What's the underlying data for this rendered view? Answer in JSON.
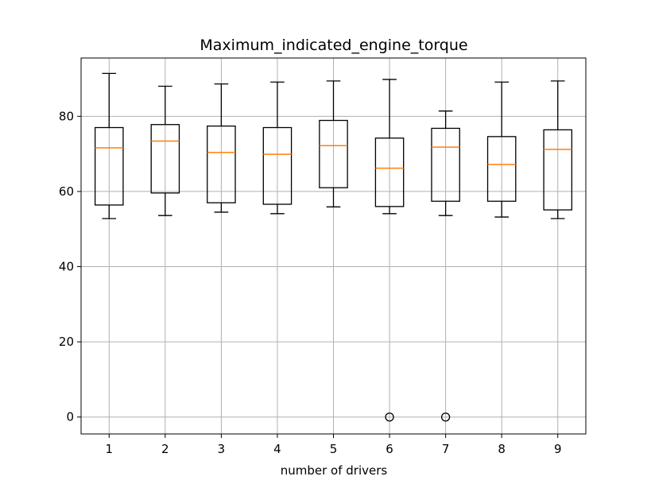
{
  "chart_data": {
    "type": "box",
    "title": "Maximum_indicated_engine_torque",
    "xlabel": "number of drivers",
    "ylabel": "",
    "categories": [
      "1",
      "2",
      "3",
      "4",
      "5",
      "6",
      "7",
      "8",
      "9"
    ],
    "ylim": [
      -4.5,
      95.5
    ],
    "yticks": [
      0,
      20,
      40,
      60,
      80
    ],
    "grid": true,
    "box_color": "#000000",
    "median_color": "#ff7f0e",
    "grid_color": "#b0b0b0",
    "boxes": [
      {
        "category": "1",
        "whisker_low": 52.8,
        "q1": 56.4,
        "median": 71.6,
        "q3": 77.0,
        "whisker_high": 91.4,
        "outliers": []
      },
      {
        "category": "2",
        "whisker_low": 53.6,
        "q1": 59.6,
        "median": 73.4,
        "q3": 77.8,
        "whisker_high": 88.0,
        "outliers": []
      },
      {
        "category": "3",
        "whisker_low": 54.5,
        "q1": 57.0,
        "median": 70.4,
        "q3": 77.4,
        "whisker_high": 88.6,
        "outliers": []
      },
      {
        "category": "4",
        "whisker_low": 54.1,
        "q1": 56.6,
        "median": 69.9,
        "q3": 77.0,
        "whisker_high": 89.1,
        "outliers": []
      },
      {
        "category": "5",
        "whisker_low": 55.9,
        "q1": 61.0,
        "median": 72.2,
        "q3": 78.9,
        "whisker_high": 89.4,
        "outliers": []
      },
      {
        "category": "6",
        "whisker_low": 54.1,
        "q1": 56.0,
        "median": 66.2,
        "q3": 74.2,
        "whisker_high": 89.8,
        "outliers": [
          0
        ]
      },
      {
        "category": "7",
        "whisker_low": 53.6,
        "q1": 57.4,
        "median": 71.8,
        "q3": 76.8,
        "whisker_high": 81.4,
        "outliers": [
          0
        ]
      },
      {
        "category": "8",
        "whisker_low": 53.2,
        "q1": 57.4,
        "median": 67.2,
        "q3": 74.6,
        "whisker_high": 89.1,
        "outliers": []
      },
      {
        "category": "9",
        "whisker_low": 52.8,
        "q1": 55.1,
        "median": 71.2,
        "q3": 76.4,
        "whisker_high": 89.4,
        "outliers": []
      }
    ]
  }
}
